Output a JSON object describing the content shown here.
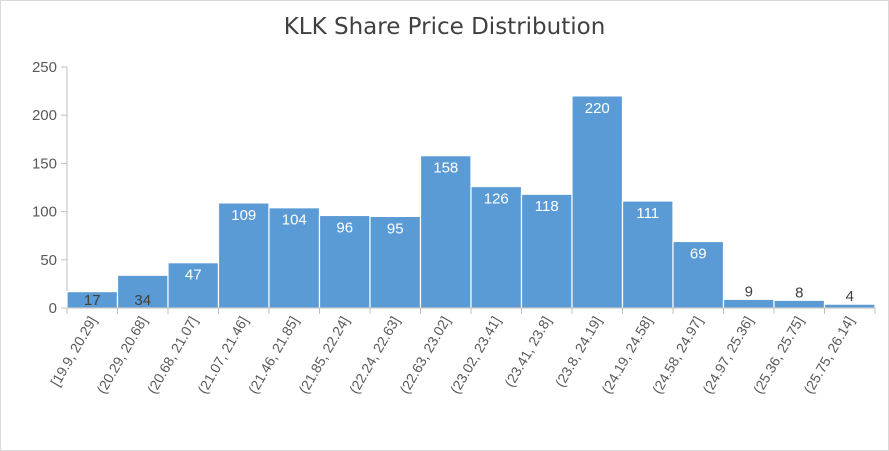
{
  "chart_data": {
    "type": "bar",
    "title": "KLK Share Price Distribution",
    "xlabel": "",
    "ylabel": "",
    "ylim": [
      0,
      250
    ],
    "yticks": [
      0,
      50,
      100,
      150,
      200,
      250
    ],
    "grid": false,
    "legend": "none",
    "categories": [
      "[19.9, 20.29]",
      "(20.29, 20.68]",
      "(20.68, 21.07]",
      "(21.07, 21.46]",
      "(21.46, 21.85]",
      "(21.85, 22.24]",
      "(22.24, 22.63]",
      "(22.63, 23.02]",
      "(23.02, 23.41]",
      "(23.41, 23.8]",
      "(23.8, 24.19]",
      "(24.19, 24.58]",
      "(24.58, 24.97]",
      "(24.97, 25.36]",
      "(25.36, 25.75]",
      "(25.75, 26.14]"
    ],
    "values": [
      17,
      34,
      47,
      109,
      104,
      96,
      95,
      158,
      126,
      118,
      220,
      111,
      69,
      9,
      8,
      4
    ],
    "colors": {
      "bar": "#5b9bd5",
      "bar_edge": "#ffffff",
      "axis": "#bfbfbf",
      "label_inside": "#ffffff",
      "label_outside": "#404040",
      "title": "#404040"
    }
  }
}
